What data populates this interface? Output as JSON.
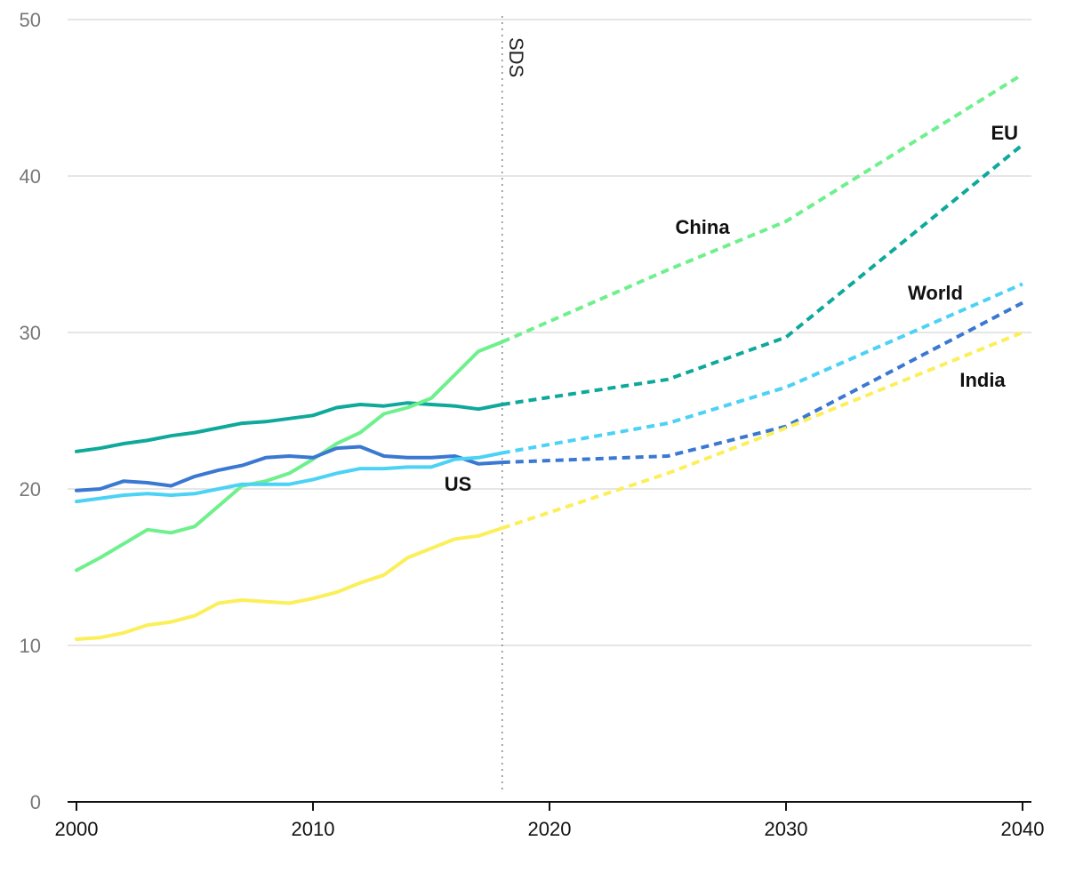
{
  "chart_data": {
    "type": "line",
    "title": "",
    "xlabel": "",
    "ylabel": "",
    "xlim": [
      2000,
      2040
    ],
    "ylim": [
      0,
      50
    ],
    "x_ticks": [
      2000,
      2010,
      2020,
      2030,
      2040
    ],
    "y_ticks": [
      0,
      10,
      20,
      30,
      40,
      50
    ],
    "grid": "horizontal",
    "annotation": {
      "label": "SDS",
      "x": 2018
    },
    "series": [
      {
        "name": "EU",
        "color": "#0ea99a",
        "historical": [
          [
            2000,
            22.4
          ],
          [
            2001,
            22.6
          ],
          [
            2002,
            22.9
          ],
          [
            2003,
            23.1
          ],
          [
            2004,
            23.4
          ],
          [
            2005,
            23.6
          ],
          [
            2006,
            23.9
          ],
          [
            2007,
            24.2
          ],
          [
            2008,
            24.3
          ],
          [
            2009,
            24.5
          ],
          [
            2010,
            24.7
          ],
          [
            2011,
            25.2
          ],
          [
            2012,
            25.4
          ],
          [
            2013,
            25.3
          ],
          [
            2014,
            25.5
          ],
          [
            2015,
            25.4
          ],
          [
            2016,
            25.3
          ],
          [
            2017,
            25.1
          ],
          [
            2018,
            25.4
          ]
        ],
        "projection": [
          [
            2018,
            25.4
          ],
          [
            2025,
            27.0
          ],
          [
            2030,
            29.7
          ],
          [
            2040,
            42.0
          ]
        ]
      },
      {
        "name": "China",
        "color": "#6ef08c",
        "historical": [
          [
            2000,
            14.8
          ],
          [
            2001,
            15.6
          ],
          [
            2002,
            16.5
          ],
          [
            2003,
            17.4
          ],
          [
            2004,
            17.2
          ],
          [
            2005,
            17.6
          ],
          [
            2006,
            18.9
          ],
          [
            2007,
            20.2
          ],
          [
            2008,
            20.5
          ],
          [
            2009,
            21.0
          ],
          [
            2010,
            21.9
          ],
          [
            2011,
            22.9
          ],
          [
            2012,
            23.6
          ],
          [
            2013,
            24.8
          ],
          [
            2014,
            25.2
          ],
          [
            2015,
            25.8
          ],
          [
            2016,
            27.3
          ],
          [
            2017,
            28.8
          ],
          [
            2018,
            29.4
          ]
        ],
        "projection": [
          [
            2018,
            29.4
          ],
          [
            2025,
            34.0
          ],
          [
            2030,
            37.1
          ],
          [
            2040,
            46.5
          ]
        ]
      },
      {
        "name": "US",
        "color": "#3a78d2",
        "historical": [
          [
            2000,
            19.9
          ],
          [
            2001,
            20.0
          ],
          [
            2002,
            20.5
          ],
          [
            2003,
            20.4
          ],
          [
            2004,
            20.2
          ],
          [
            2005,
            20.8
          ],
          [
            2006,
            21.2
          ],
          [
            2007,
            21.5
          ],
          [
            2008,
            22.0
          ],
          [
            2009,
            22.1
          ],
          [
            2010,
            22.0
          ],
          [
            2011,
            22.6
          ],
          [
            2012,
            22.7
          ],
          [
            2013,
            22.1
          ],
          [
            2014,
            22.0
          ],
          [
            2015,
            22.0
          ],
          [
            2016,
            22.1
          ],
          [
            2017,
            21.6
          ],
          [
            2018,
            21.7
          ]
        ],
        "projection": [
          [
            2018,
            21.7
          ],
          [
            2025,
            22.1
          ],
          [
            2030,
            24.0
          ],
          [
            2040,
            31.9
          ]
        ]
      },
      {
        "name": "World",
        "color": "#4cd2f5",
        "historical": [
          [
            2000,
            19.2
          ],
          [
            2001,
            19.4
          ],
          [
            2002,
            19.6
          ],
          [
            2003,
            19.7
          ],
          [
            2004,
            19.6
          ],
          [
            2005,
            19.7
          ],
          [
            2006,
            20.0
          ],
          [
            2007,
            20.3
          ],
          [
            2008,
            20.3
          ],
          [
            2009,
            20.3
          ],
          [
            2010,
            20.6
          ],
          [
            2011,
            21.0
          ],
          [
            2012,
            21.3
          ],
          [
            2013,
            21.3
          ],
          [
            2014,
            21.4
          ],
          [
            2015,
            21.4
          ],
          [
            2016,
            21.9
          ],
          [
            2017,
            22.0
          ],
          [
            2018,
            22.3
          ]
        ],
        "projection": [
          [
            2018,
            22.3
          ],
          [
            2025,
            24.2
          ],
          [
            2030,
            26.5
          ],
          [
            2040,
            33.1
          ]
        ]
      },
      {
        "name": "India",
        "color": "#fbef5a",
        "historical": [
          [
            2000,
            10.4
          ],
          [
            2001,
            10.5
          ],
          [
            2002,
            10.8
          ],
          [
            2003,
            11.3
          ],
          [
            2004,
            11.5
          ],
          [
            2005,
            11.9
          ],
          [
            2006,
            12.7
          ],
          [
            2007,
            12.9
          ],
          [
            2008,
            12.8
          ],
          [
            2009,
            12.7
          ],
          [
            2010,
            13.0
          ],
          [
            2011,
            13.4
          ],
          [
            2012,
            14.0
          ],
          [
            2013,
            14.5
          ],
          [
            2014,
            15.6
          ],
          [
            2015,
            16.2
          ],
          [
            2016,
            16.8
          ],
          [
            2017,
            17.0
          ],
          [
            2018,
            17.5
          ]
        ],
        "projection": [
          [
            2018,
            17.5
          ],
          [
            2025,
            21.0
          ],
          [
            2030,
            23.9
          ],
          [
            2040,
            30.0
          ]
        ]
      }
    ]
  }
}
